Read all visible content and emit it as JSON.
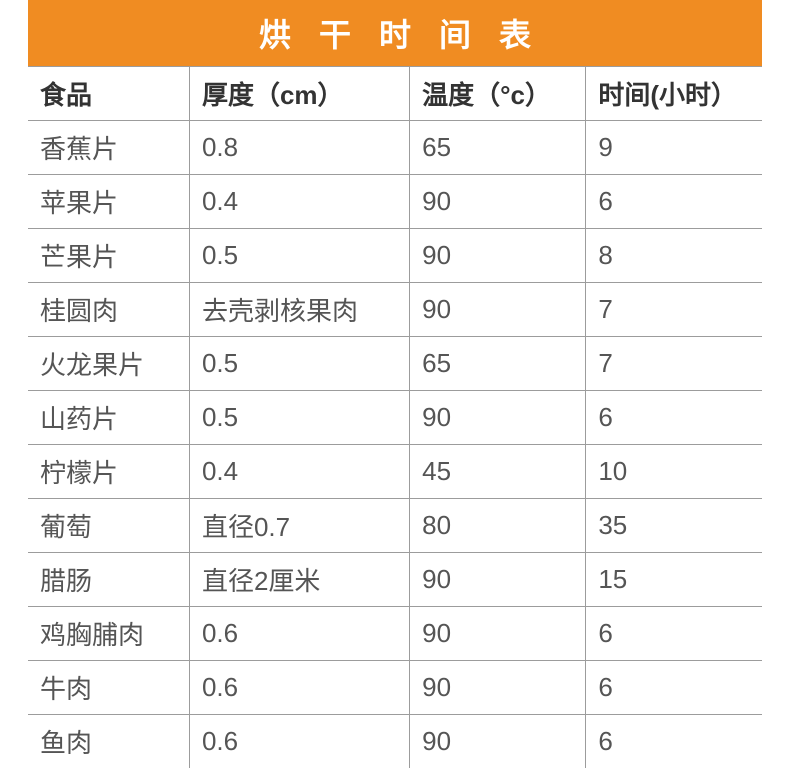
{
  "title": "烘干时间表",
  "colors": {
    "title_bg": "#f08c22",
    "title_fg": "#ffffff",
    "grid": "#9c9c9c",
    "text": "#555555"
  },
  "columns": [
    "食品",
    "厚度（cm）",
    "温度（°c）",
    "时间(小时）"
  ],
  "rows": [
    [
      "香蕉片",
      "0.8",
      "65",
      "9"
    ],
    [
      "苹果片",
      "0.4",
      "90",
      "6"
    ],
    [
      "芒果片",
      "0.5",
      "90",
      "8"
    ],
    [
      "桂圆肉",
      "去壳剥核果肉",
      "90",
      "7"
    ],
    [
      "火龙果片",
      "0.5",
      "65",
      "7"
    ],
    [
      "山药片",
      "0.5",
      "90",
      "6"
    ],
    [
      "柠檬片",
      "0.4",
      "45",
      "10"
    ],
    [
      "葡萄",
      "直径0.7",
      "80",
      "35"
    ],
    [
      "腊肠",
      "直径2厘米",
      "90",
      "15"
    ],
    [
      "鸡胸脯肉",
      "0.6",
      "90",
      "6"
    ],
    [
      "牛肉",
      "0.6",
      "90",
      "6"
    ],
    [
      "鱼肉",
      "0.6",
      "90",
      "6"
    ]
  ]
}
